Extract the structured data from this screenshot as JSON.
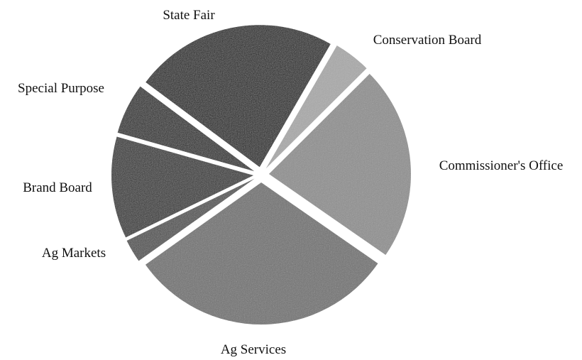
{
  "chart_data": {
    "type": "pie",
    "title": "",
    "legend": "none",
    "slices": [
      {
        "label": "Conservation Board",
        "value": 4,
        "color": "#a9a9a9"
      },
      {
        "label": "Commissioner's Office",
        "value": 21,
        "color": "#8e8e8e"
      },
      {
        "label": "Ag Services",
        "value": 29,
        "color": "#6f6f6f"
      },
      {
        "label": "Ag Markets",
        "value": 2.5,
        "color": "#4d4d4d"
      },
      {
        "label": "Brand Board",
        "value": 11,
        "color": "#2e2e2e"
      },
      {
        "label": "Special Purpose",
        "value": 5.5,
        "color": "#222222"
      },
      {
        "label": "State Fair",
        "value": 22,
        "color": "#161616"
      }
    ]
  }
}
